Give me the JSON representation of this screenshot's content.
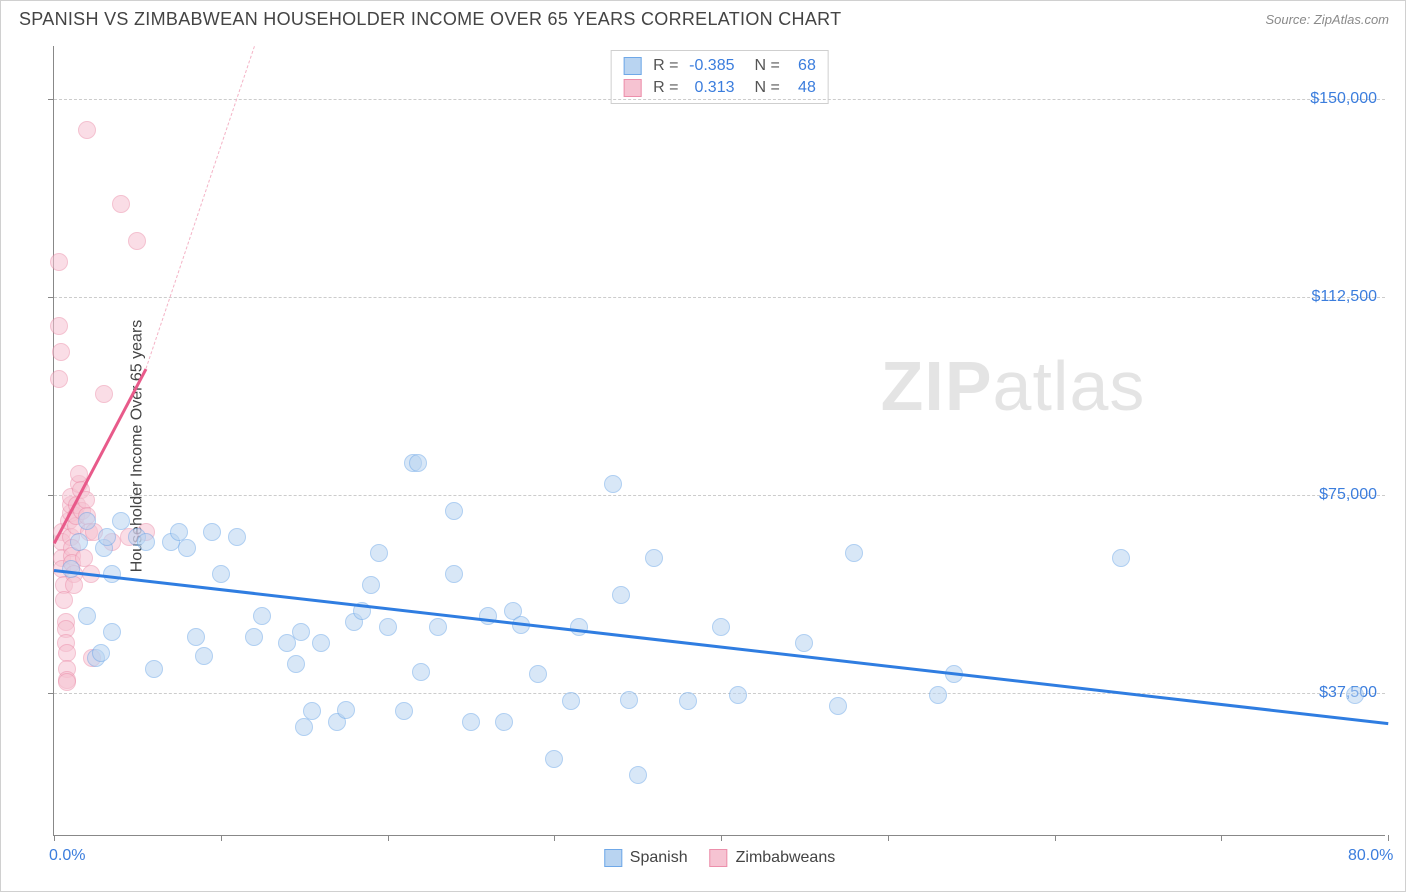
{
  "title": "SPANISH VS ZIMBABWEAN HOUSEHOLDER INCOME OVER 65 YEARS CORRELATION CHART",
  "source": "Source: ZipAtlas.com",
  "ylabel": "Householder Income Over 65 years",
  "watermark_bold": "ZIP",
  "watermark_rest": "atlas",
  "chart": {
    "type": "scatter",
    "xlim": [
      0,
      80
    ],
    "ylim": [
      10000,
      160000
    ],
    "x_tick_positions": [
      0,
      10,
      20,
      30,
      40,
      50,
      60,
      70,
      80
    ],
    "x_tick_labels_shown": {
      "0": "0.0%",
      "80": "80.0%"
    },
    "y_gridlines": [
      37500,
      75000,
      112500,
      150000
    ],
    "y_tick_labels": {
      "37500": "$37,500",
      "75000": "$75,000",
      "112500": "$112,500",
      "150000": "$150,000"
    },
    "background_color": "#ffffff",
    "grid_color": "#cccccc",
    "axis_color": "#888888",
    "marker_radius": 9,
    "marker_border_width": 1.5,
    "series": [
      {
        "name": "Spanish",
        "fill": "#b9d4f1",
        "stroke": "#6fa8e8",
        "fill_opacity": 0.55,
        "R": "-0.385",
        "N": "68",
        "trend": {
          "x1": 0,
          "y1": 61000,
          "x2": 80,
          "y2": 32000,
          "color": "#2f7de1",
          "width": 3,
          "dashed": false
        },
        "points": [
          [
            1,
            61000
          ],
          [
            1.5,
            66000
          ],
          [
            2,
            70000
          ],
          [
            2,
            52000
          ],
          [
            2.5,
            44000
          ],
          [
            2.8,
            45000
          ],
          [
            3,
            65000
          ],
          [
            3.2,
            67000
          ],
          [
            3.5,
            60000
          ],
          [
            3.5,
            49000
          ],
          [
            4,
            70000
          ],
          [
            5,
            67000
          ],
          [
            5.5,
            66000
          ],
          [
            6,
            42000
          ],
          [
            7,
            66000
          ],
          [
            7.5,
            68000
          ],
          [
            8,
            65000
          ],
          [
            8.5,
            48000
          ],
          [
            9,
            44500
          ],
          [
            9.5,
            68000
          ],
          [
            10,
            60000
          ],
          [
            11,
            67000
          ],
          [
            12,
            48000
          ],
          [
            12.5,
            52000
          ],
          [
            14,
            47000
          ],
          [
            14.5,
            43000
          ],
          [
            14.8,
            49000
          ],
          [
            15,
            31000
          ],
          [
            15.5,
            34000
          ],
          [
            16,
            47000
          ],
          [
            17,
            32000
          ],
          [
            17.5,
            34200
          ],
          [
            18,
            51000
          ],
          [
            18.5,
            53000
          ],
          [
            19,
            58000
          ],
          [
            19.5,
            64000
          ],
          [
            20,
            50000
          ],
          [
            21,
            34000
          ],
          [
            21.5,
            81000
          ],
          [
            21.8,
            81000
          ],
          [
            22,
            41500
          ],
          [
            23,
            50000
          ],
          [
            24,
            60000
          ],
          [
            24,
            72000
          ],
          [
            25,
            32000
          ],
          [
            26,
            52000
          ],
          [
            27,
            32000
          ],
          [
            27.5,
            53000
          ],
          [
            28,
            50300
          ],
          [
            29,
            41000
          ],
          [
            30,
            25000
          ],
          [
            31,
            36000
          ],
          [
            31.5,
            50000
          ],
          [
            33.5,
            77000
          ],
          [
            34,
            56000
          ],
          [
            34.5,
            36200
          ],
          [
            35,
            22000
          ],
          [
            36,
            63000
          ],
          [
            38,
            36000
          ],
          [
            40,
            50000
          ],
          [
            41,
            37000
          ],
          [
            45,
            47000
          ],
          [
            47,
            35000
          ],
          [
            48,
            64000
          ],
          [
            53,
            37000
          ],
          [
            54,
            41000
          ],
          [
            64,
            63000
          ],
          [
            78,
            37000
          ]
        ]
      },
      {
        "name": "Zimbabweans",
        "fill": "#f6c3d2",
        "stroke": "#ec8fab",
        "fill_opacity": 0.55,
        "R": "0.313",
        "N": "48",
        "trend_solid": {
          "x1": 0,
          "y1": 66000,
          "x2": 5.5,
          "y2": 99000,
          "color": "#e85a8a",
          "width": 2.5
        },
        "trend_dashed": {
          "x1": 5.5,
          "y1": 99000,
          "x2": 12,
          "y2": 160000,
          "color": "#f4b3c6",
          "width": 1.5
        },
        "points": [
          [
            0.3,
            119000
          ],
          [
            0.3,
            107000
          ],
          [
            0.4,
            102000
          ],
          [
            0.3,
            97000
          ],
          [
            0.5,
            68000
          ],
          [
            0.5,
            66000
          ],
          [
            0.5,
            63000
          ],
          [
            0.5,
            61000
          ],
          [
            0.6,
            58000
          ],
          [
            0.6,
            55000
          ],
          [
            0.7,
            51000
          ],
          [
            0.7,
            49500
          ],
          [
            0.7,
            47000
          ],
          [
            0.8,
            45000
          ],
          [
            0.8,
            42000
          ],
          [
            0.8,
            40000
          ],
          [
            0.8,
            39500
          ],
          [
            0.9,
            70000
          ],
          [
            1.0,
            71500
          ],
          [
            1.0,
            73000
          ],
          [
            1.0,
            74500
          ],
          [
            1.0,
            67000
          ],
          [
            1.1,
            65000
          ],
          [
            1.1,
            63500
          ],
          [
            1.1,
            62000
          ],
          [
            1.2,
            60000
          ],
          [
            1.2,
            58000
          ],
          [
            1.3,
            69000
          ],
          [
            1.3,
            71000
          ],
          [
            1.4,
            73000
          ],
          [
            1.5,
            77000
          ],
          [
            1.5,
            79000
          ],
          [
            1.6,
            76000
          ],
          [
            1.7,
            72000
          ],
          [
            1.8,
            63000
          ],
          [
            1.9,
            74000
          ],
          [
            2.0,
            71000
          ],
          [
            2.1,
            68000
          ],
          [
            2.2,
            60000
          ],
          [
            2.3,
            44000
          ],
          [
            2.4,
            68000
          ],
          [
            2.0,
            144000
          ],
          [
            3.0,
            94000
          ],
          [
            3.5,
            66000
          ],
          [
            4.0,
            130000
          ],
          [
            4.5,
            67000
          ],
          [
            5.0,
            123000
          ],
          [
            5.5,
            68000
          ]
        ]
      }
    ]
  },
  "legend_labels": {
    "spanish": "Spanish",
    "zimbabweans": "Zimbabweans",
    "R_prefix": "R =",
    "N_prefix": "N ="
  }
}
